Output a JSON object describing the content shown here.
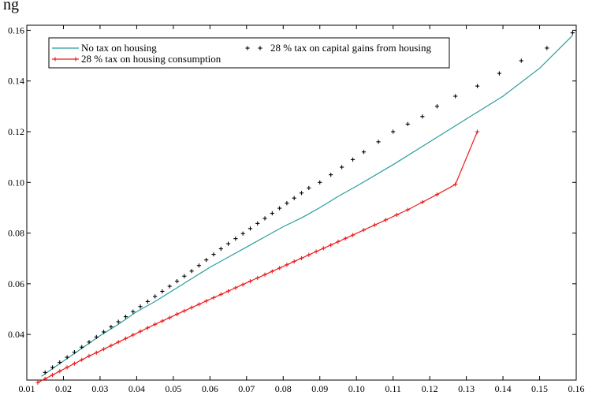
{
  "header_fragment": "ng",
  "chart_data": {
    "type": "line",
    "title": "",
    "xlabel": "",
    "ylabel": "",
    "xlim": [
      0.01,
      0.16
    ],
    "ylim": [
      0.022,
      0.162
    ],
    "x_ticks": [
      "0.01",
      "0.02",
      "0.03",
      "0.04",
      "0.05",
      "0.06",
      "0.07",
      "0.08",
      "0.09",
      "0.10",
      "0.11",
      "0.12",
      "0.13",
      "0.14",
      "0.15",
      "0.16"
    ],
    "y_ticks": [
      "0.04",
      "0.06",
      "0.08",
      "0.10",
      "0.12",
      "0.14",
      "0.16"
    ],
    "grid": false,
    "legend_position": "top-left",
    "series": [
      {
        "name": "No tax on housing",
        "style": "line",
        "color": "#2a9d9d",
        "x": [
          0.014,
          0.016,
          0.018,
          0.02,
          0.025,
          0.03,
          0.035,
          0.04,
          0.045,
          0.05,
          0.055,
          0.06,
          0.065,
          0.07,
          0.075,
          0.08,
          0.085,
          0.09,
          0.095,
          0.1,
          0.11,
          0.12,
          0.13,
          0.14,
          0.15,
          0.159
        ],
        "y": [
          0.0235,
          0.0255,
          0.0275,
          0.0295,
          0.0345,
          0.0395,
          0.044,
          0.049,
          0.053,
          0.0575,
          0.062,
          0.0665,
          0.0705,
          0.0745,
          0.0785,
          0.0825,
          0.086,
          0.09,
          0.0945,
          0.0985,
          0.107,
          0.116,
          0.125,
          0.134,
          0.145,
          0.158
        ]
      },
      {
        "name": "28 % tax on capital gains from housing",
        "style": "markers",
        "color": "#000000",
        "x": [
          0.015,
          0.017,
          0.019,
          0.021,
          0.023,
          0.025,
          0.027,
          0.029,
          0.031,
          0.033,
          0.035,
          0.037,
          0.039,
          0.041,
          0.043,
          0.045,
          0.047,
          0.049,
          0.051,
          0.053,
          0.055,
          0.057,
          0.059,
          0.061,
          0.063,
          0.065,
          0.067,
          0.069,
          0.071,
          0.073,
          0.075,
          0.077,
          0.079,
          0.081,
          0.083,
          0.085,
          0.087,
          0.09,
          0.093,
          0.096,
          0.099,
          0.102,
          0.106,
          0.11,
          0.114,
          0.118,
          0.122,
          0.127,
          0.133,
          0.139,
          0.145,
          0.152,
          0.159
        ],
        "y": [
          0.025,
          0.027,
          0.029,
          0.031,
          0.033,
          0.035,
          0.037,
          0.039,
          0.041,
          0.043,
          0.045,
          0.047,
          0.049,
          0.051,
          0.053,
          0.055,
          0.057,
          0.059,
          0.061,
          0.063,
          0.065,
          0.0672,
          0.0694,
          0.0716,
          0.0738,
          0.0758,
          0.0778,
          0.0798,
          0.0818,
          0.0838,
          0.0858,
          0.0878,
          0.0898,
          0.0918,
          0.0938,
          0.0958,
          0.0978,
          0.1,
          0.103,
          0.106,
          0.109,
          0.112,
          0.116,
          0.12,
          0.123,
          0.126,
          0.13,
          0.134,
          0.138,
          0.143,
          0.148,
          0.153,
          0.159
        ]
      },
      {
        "name": "28 % tax on housing consumption",
        "style": "line-markers",
        "color": "#ee1c1c",
        "x": [
          0.013,
          0.015,
          0.017,
          0.019,
          0.021,
          0.023,
          0.025,
          0.027,
          0.029,
          0.031,
          0.033,
          0.035,
          0.037,
          0.039,
          0.041,
          0.043,
          0.045,
          0.047,
          0.049,
          0.051,
          0.053,
          0.055,
          0.057,
          0.059,
          0.061,
          0.063,
          0.065,
          0.067,
          0.069,
          0.071,
          0.073,
          0.075,
          0.077,
          0.079,
          0.081,
          0.083,
          0.085,
          0.087,
          0.089,
          0.091,
          0.093,
          0.095,
          0.097,
          0.099,
          0.102,
          0.105,
          0.108,
          0.111,
          0.114,
          0.118,
          0.122,
          0.127,
          0.133
        ],
        "y": [
          0.021,
          0.0225,
          0.024,
          0.0255,
          0.027,
          0.0285,
          0.03,
          0.0315,
          0.0328,
          0.0342,
          0.0356,
          0.037,
          0.0384,
          0.0398,
          0.0412,
          0.0426,
          0.044,
          0.0453,
          0.0466,
          0.048,
          0.0493,
          0.0506,
          0.0519,
          0.0532,
          0.0545,
          0.0558,
          0.0571,
          0.0584,
          0.0597,
          0.061,
          0.0623,
          0.0636,
          0.0649,
          0.0662,
          0.0675,
          0.0688,
          0.0701,
          0.0714,
          0.0727,
          0.074,
          0.0753,
          0.0766,
          0.0779,
          0.0792,
          0.0812,
          0.0832,
          0.0852,
          0.0872,
          0.0892,
          0.0922,
          0.0952,
          0.0992,
          0.12
        ]
      }
    ]
  }
}
